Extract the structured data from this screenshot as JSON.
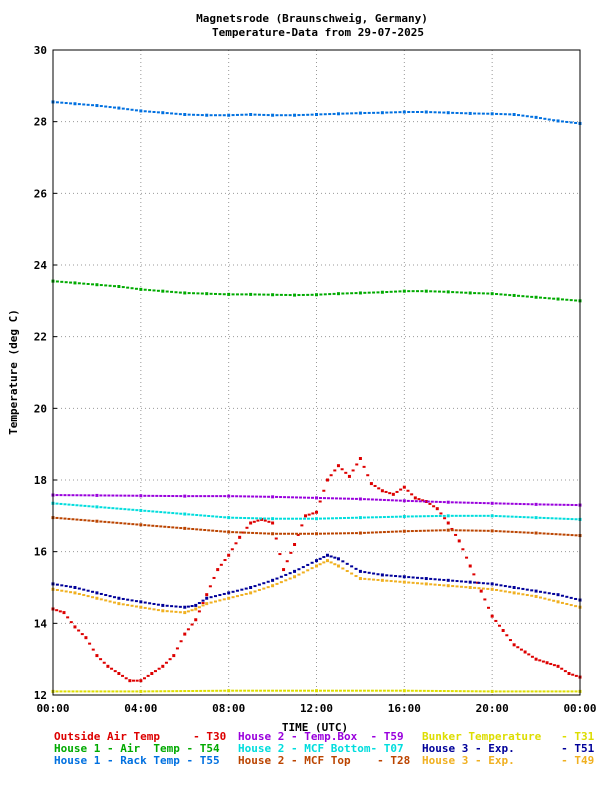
{
  "chart_data": {
    "type": "scatter",
    "title": "Magnetsrode (Braunschweig, Germany)",
    "subtitle": "Temperature-Data from 29-07-2025",
    "xlabel": "TIME (UTC)",
    "ylabel": "Temperature (deg C)",
    "xlim": [
      0,
      24
    ],
    "ylim": [
      12,
      30
    ],
    "x_unit": "hours",
    "grid": true,
    "x_tick_labels": [
      "00:00",
      "04:00",
      "08:00",
      "12:00",
      "16:00",
      "20:00",
      "00:00"
    ],
    "y_tick_labels": [
      "12",
      "14",
      "16",
      "18",
      "20",
      "22",
      "24",
      "26",
      "28",
      "30"
    ],
    "series": [
      {
        "legend": "Outside Air Temp     - T30",
        "color": "#dd0000",
        "points": [
          [
            0,
            14.4
          ],
          [
            0.5,
            14.3
          ],
          [
            1,
            13.9
          ],
          [
            1.5,
            13.6
          ],
          [
            2,
            13.1
          ],
          [
            2.5,
            12.8
          ],
          [
            3,
            12.6
          ],
          [
            3.5,
            12.4
          ],
          [
            4,
            12.4
          ],
          [
            4.5,
            12.6
          ],
          [
            5,
            12.8
          ],
          [
            5.5,
            13.1
          ],
          [
            6,
            13.7
          ],
          [
            6.5,
            14.1
          ],
          [
            7,
            14.8
          ],
          [
            7.5,
            15.5
          ],
          [
            8,
            15.9
          ],
          [
            8.5,
            16.4
          ],
          [
            9,
            16.8
          ],
          [
            9.5,
            16.9
          ],
          [
            10,
            16.8
          ],
          [
            10.5,
            15.5
          ],
          [
            11,
            16.2
          ],
          [
            11.5,
            17.0
          ],
          [
            12,
            17.1
          ],
          [
            12.5,
            18.0
          ],
          [
            13,
            18.4
          ],
          [
            13.5,
            18.1
          ],
          [
            14,
            18.6
          ],
          [
            14.5,
            17.9
          ],
          [
            15,
            17.7
          ],
          [
            15.5,
            17.6
          ],
          [
            16,
            17.8
          ],
          [
            16.5,
            17.5
          ],
          [
            17,
            17.4
          ],
          [
            17.5,
            17.2
          ],
          [
            18,
            16.8
          ],
          [
            18.5,
            16.3
          ],
          [
            19,
            15.6
          ],
          [
            19.5,
            14.9
          ],
          [
            20,
            14.2
          ],
          [
            20.5,
            13.8
          ],
          [
            21,
            13.4
          ],
          [
            21.5,
            13.2
          ],
          [
            22,
            13.0
          ],
          [
            22.5,
            12.9
          ],
          [
            23,
            12.8
          ],
          [
            23.5,
            12.6
          ],
          [
            24,
            12.5
          ]
        ]
      },
      {
        "legend": "House 1 - Air  Temp - T54",
        "color": "#00aa00",
        "points": [
          [
            0,
            23.55
          ],
          [
            1,
            23.5
          ],
          [
            2,
            23.45
          ],
          [
            3,
            23.4
          ],
          [
            4,
            23.32
          ],
          [
            5,
            23.27
          ],
          [
            6,
            23.22
          ],
          [
            7,
            23.2
          ],
          [
            8,
            23.18
          ],
          [
            9,
            23.18
          ],
          [
            10,
            23.17
          ],
          [
            11,
            23.16
          ],
          [
            12,
            23.17
          ],
          [
            13,
            23.2
          ],
          [
            14,
            23.22
          ],
          [
            15,
            23.24
          ],
          [
            16,
            23.27
          ],
          [
            17,
            23.27
          ],
          [
            18,
            23.25
          ],
          [
            19,
            23.22
          ],
          [
            20,
            23.2
          ],
          [
            21,
            23.15
          ],
          [
            22,
            23.1
          ],
          [
            23,
            23.05
          ],
          [
            24,
            23.0
          ]
        ]
      },
      {
        "legend": "House 1 - Rack Temp - T55",
        "color": "#0070e0",
        "points": [
          [
            0,
            28.55
          ],
          [
            1,
            28.5
          ],
          [
            2,
            28.45
          ],
          [
            3,
            28.38
          ],
          [
            4,
            28.3
          ],
          [
            5,
            28.25
          ],
          [
            6,
            28.2
          ],
          [
            7,
            28.18
          ],
          [
            8,
            28.18
          ],
          [
            9,
            28.2
          ],
          [
            10,
            28.18
          ],
          [
            11,
            28.18
          ],
          [
            12,
            28.2
          ],
          [
            13,
            28.22
          ],
          [
            14,
            28.24
          ],
          [
            15,
            28.25
          ],
          [
            16,
            28.27
          ],
          [
            17,
            28.27
          ],
          [
            18,
            28.25
          ],
          [
            19,
            28.23
          ],
          [
            20,
            28.22
          ],
          [
            21,
            28.2
          ],
          [
            22,
            28.12
          ],
          [
            23,
            28.02
          ],
          [
            24,
            27.95
          ]
        ]
      },
      {
        "legend": "House 2 - Temp.Box  - T59",
        "color": "#9900dd",
        "points": [
          [
            0,
            17.58
          ],
          [
            2,
            17.57
          ],
          [
            4,
            17.56
          ],
          [
            6,
            17.55
          ],
          [
            8,
            17.55
          ],
          [
            10,
            17.53
          ],
          [
            12,
            17.5
          ],
          [
            14,
            17.47
          ],
          [
            16,
            17.42
          ],
          [
            18,
            17.38
          ],
          [
            20,
            17.35
          ],
          [
            22,
            17.32
          ],
          [
            24,
            17.3
          ]
        ]
      },
      {
        "legend": "House 2 - MCF Bottom- T07",
        "color": "#00dddd",
        "points": [
          [
            0,
            17.35
          ],
          [
            2,
            17.25
          ],
          [
            4,
            17.15
          ],
          [
            6,
            17.05
          ],
          [
            8,
            16.95
          ],
          [
            10,
            16.92
          ],
          [
            12,
            16.92
          ],
          [
            14,
            16.95
          ],
          [
            16,
            16.98
          ],
          [
            18,
            17.0
          ],
          [
            20,
            17.0
          ],
          [
            22,
            16.95
          ],
          [
            24,
            16.9
          ]
        ]
      },
      {
        "legend": "House 2 - MCF Top    - T28",
        "color": "#bb4400",
        "points": [
          [
            0,
            16.95
          ],
          [
            2,
            16.85
          ],
          [
            4,
            16.75
          ],
          [
            6,
            16.65
          ],
          [
            8,
            16.55
          ],
          [
            10,
            16.5
          ],
          [
            12,
            16.5
          ],
          [
            14,
            16.52
          ],
          [
            16,
            16.57
          ],
          [
            18,
            16.6
          ],
          [
            20,
            16.58
          ],
          [
            22,
            16.52
          ],
          [
            24,
            16.45
          ]
        ]
      },
      {
        "legend": "Bunker Temperature   - T31",
        "color": "#dddd00",
        "points": [
          [
            0,
            12.1
          ],
          [
            4,
            12.1
          ],
          [
            8,
            12.12
          ],
          [
            12,
            12.12
          ],
          [
            16,
            12.12
          ],
          [
            20,
            12.1
          ],
          [
            24,
            12.1
          ]
        ]
      },
      {
        "legend": "House 3 - Exp.       - T51",
        "color": "#000099",
        "points": [
          [
            0,
            15.1
          ],
          [
            1,
            15.0
          ],
          [
            2,
            14.85
          ],
          [
            3,
            14.7
          ],
          [
            4,
            14.6
          ],
          [
            5,
            14.5
          ],
          [
            6,
            14.45
          ],
          [
            6.5,
            14.5
          ],
          [
            7,
            14.7
          ],
          [
            8,
            14.85
          ],
          [
            9,
            15.0
          ],
          [
            10,
            15.2
          ],
          [
            11,
            15.45
          ],
          [
            12,
            15.75
          ],
          [
            12.5,
            15.9
          ],
          [
            13,
            15.8
          ],
          [
            14,
            15.45
          ],
          [
            15,
            15.35
          ],
          [
            16,
            15.3
          ],
          [
            17,
            15.25
          ],
          [
            18,
            15.2
          ],
          [
            19,
            15.15
          ],
          [
            20,
            15.1
          ],
          [
            21,
            15.0
          ],
          [
            22,
            14.9
          ],
          [
            23,
            14.8
          ],
          [
            24,
            14.65
          ]
        ]
      },
      {
        "legend": "House 3 - Exp.       - T49",
        "color": "#f0b020",
        "points": [
          [
            0,
            14.95
          ],
          [
            1,
            14.85
          ],
          [
            2,
            14.7
          ],
          [
            3,
            14.55
          ],
          [
            4,
            14.45
          ],
          [
            5,
            14.35
          ],
          [
            6,
            14.3
          ],
          [
            6.5,
            14.4
          ],
          [
            7,
            14.55
          ],
          [
            8,
            14.7
          ],
          [
            9,
            14.85
          ],
          [
            10,
            15.05
          ],
          [
            11,
            15.3
          ],
          [
            12,
            15.6
          ],
          [
            12.5,
            15.75
          ],
          [
            13,
            15.6
          ],
          [
            14,
            15.25
          ],
          [
            15,
            15.2
          ],
          [
            16,
            15.15
          ],
          [
            17,
            15.1
          ],
          [
            18,
            15.05
          ],
          [
            19,
            15.0
          ],
          [
            20,
            14.95
          ],
          [
            21,
            14.85
          ],
          [
            22,
            14.75
          ],
          [
            23,
            14.6
          ],
          [
            24,
            14.45
          ]
        ]
      }
    ]
  }
}
